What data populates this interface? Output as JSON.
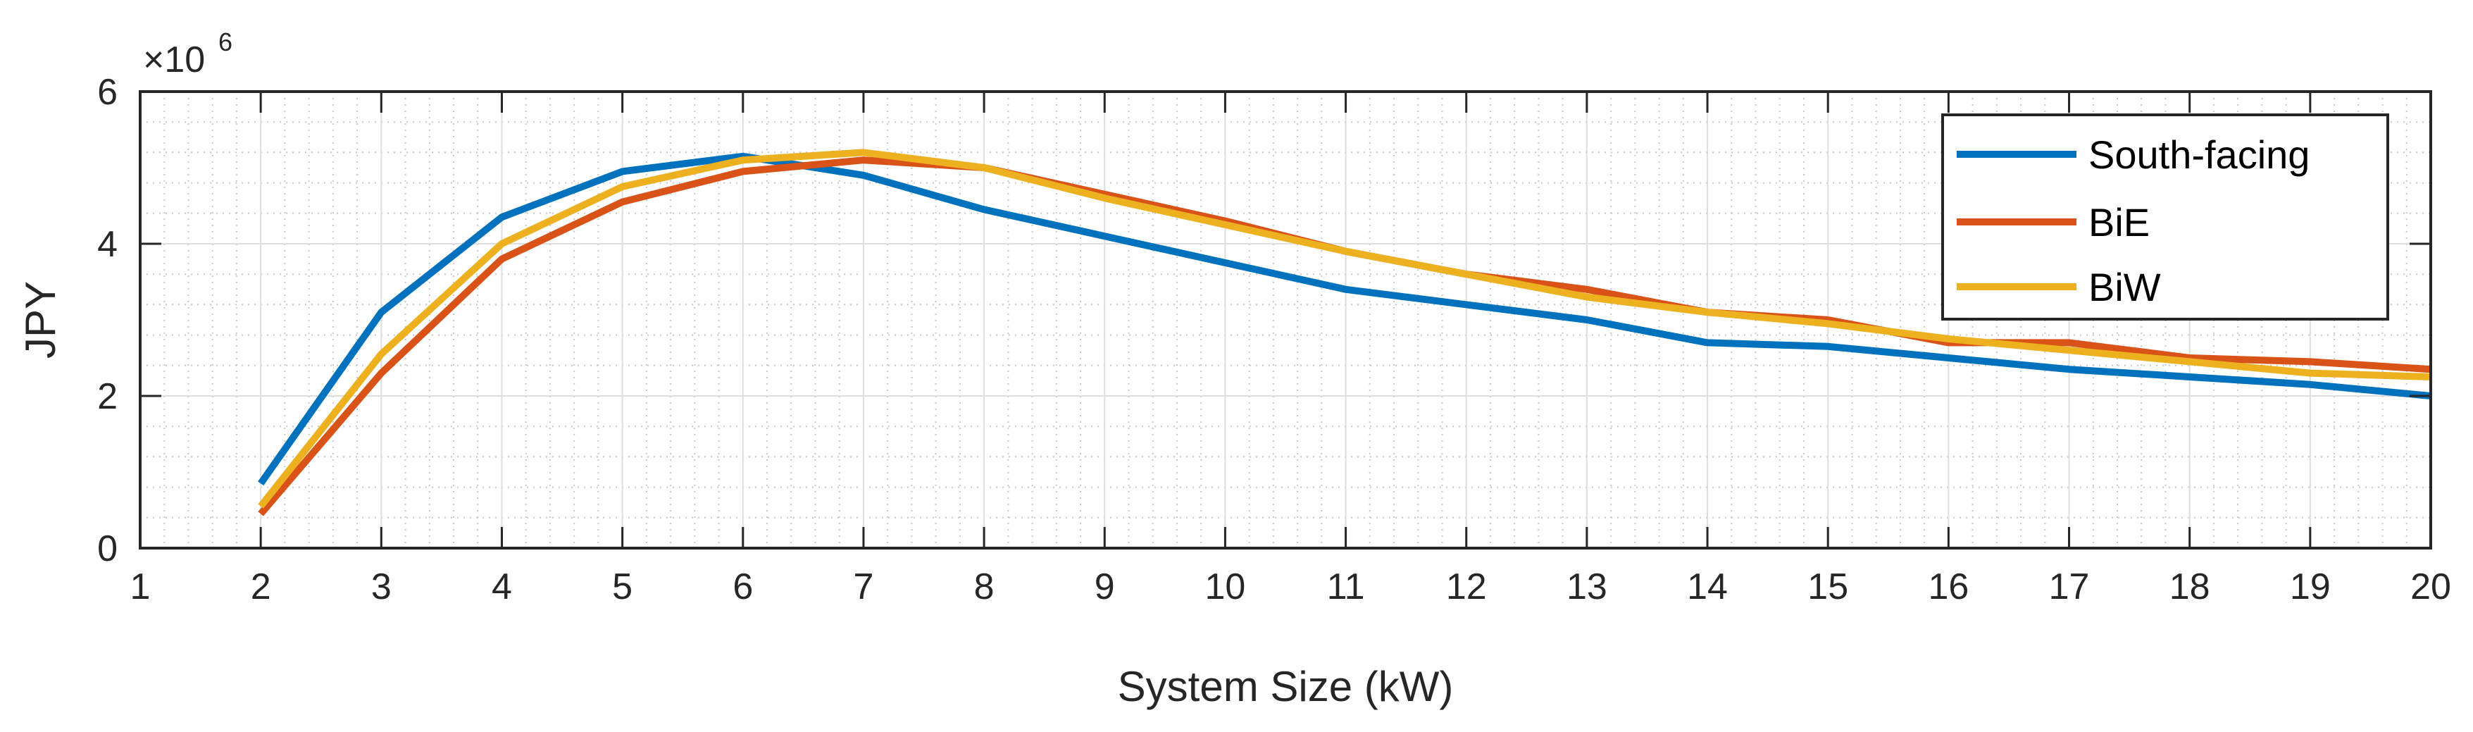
{
  "chart_data": {
    "type": "line",
    "title": "",
    "xlabel": "System Size (kW)",
    "ylabel": "JPY",
    "y_exponent_base": "×10",
    "y_exponent_power": "6",
    "xlim": [
      1,
      20
    ],
    "ylim": [
      0,
      6000000
    ],
    "x_ticks": [
      1,
      2,
      3,
      4,
      5,
      6,
      7,
      8,
      9,
      10,
      11,
      12,
      13,
      14,
      15,
      16,
      17,
      18,
      19,
      20
    ],
    "y_ticks": [
      0,
      2000000,
      4000000,
      6000000
    ],
    "y_tick_labels": [
      "0",
      "2",
      "4",
      "6"
    ],
    "grid": true,
    "minor_grid": true,
    "legend_position": "top-right",
    "x": [
      2,
      3,
      4,
      5,
      6,
      7,
      8,
      9,
      10,
      11,
      12,
      13,
      14,
      15,
      16,
      17,
      18,
      19,
      20
    ],
    "series": [
      {
        "name": "South-facing",
        "color": "#0072BD",
        "values": [
          850000,
          3100000,
          4350000,
          4950000,
          5150000,
          4900000,
          4450000,
          4100000,
          3750000,
          3400000,
          3200000,
          3000000,
          2700000,
          2650000,
          2500000,
          2350000,
          2250000,
          2150000,
          2000000
        ]
      },
      {
        "name": "BiE",
        "color": "#D95319",
        "values": [
          450000,
          2300000,
          3800000,
          4550000,
          4950000,
          5100000,
          5000000,
          4650000,
          4300000,
          3900000,
          3600000,
          3400000,
          3100000,
          3000000,
          2700000,
          2700000,
          2500000,
          2450000,
          2350000
        ]
      },
      {
        "name": "BiW",
        "color": "#EDB120",
        "values": [
          550000,
          2550000,
          4000000,
          4750000,
          5100000,
          5200000,
          5000000,
          4600000,
          4250000,
          3900000,
          3600000,
          3300000,
          3100000,
          2950000,
          2750000,
          2600000,
          2450000,
          2300000,
          2250000
        ]
      }
    ]
  }
}
